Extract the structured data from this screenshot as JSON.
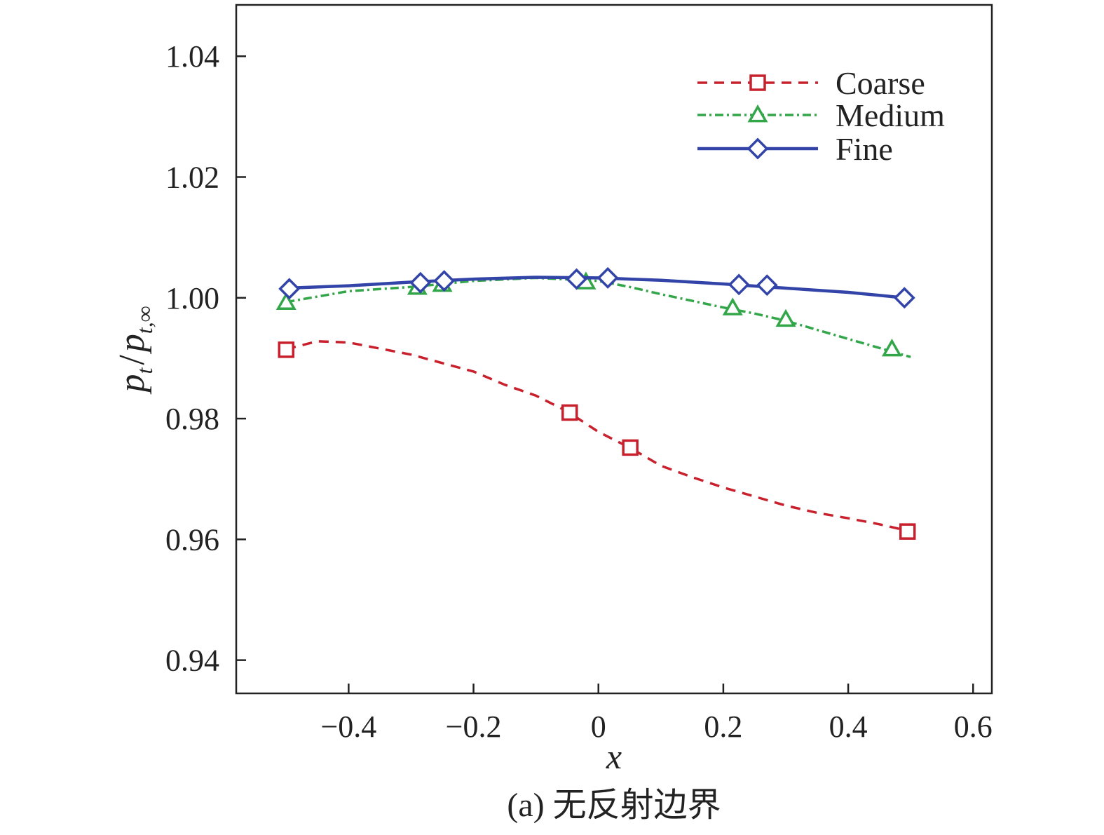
{
  "chart_data": {
    "type": "line",
    "xlabel": "x",
    "ylabel": {
      "main": "p",
      "sub1": "t",
      "slash": "/",
      "main2": "p",
      "sub2": "t,∞"
    },
    "caption": "(a) 无反射边界",
    "xlim": [
      -0.58,
      0.63
    ],
    "ylim": [
      0.9345,
      1.0485
    ],
    "xticks": [
      {
        "value": -0.4,
        "label": "−0.4"
      },
      {
        "value": -0.2,
        "label": "−0.2"
      },
      {
        "value": 0,
        "label": "0"
      },
      {
        "value": 0.2,
        "label": "0.2"
      },
      {
        "value": 0.4,
        "label": "0.4"
      },
      {
        "value": 0.6,
        "label": "0.6"
      }
    ],
    "yticks": [
      {
        "value": 0.94,
        "label": "0.94"
      },
      {
        "value": 0.96,
        "label": "0.96"
      },
      {
        "value": 0.98,
        "label": "0.98"
      },
      {
        "value": 1.0,
        "label": "1.00"
      },
      {
        "value": 1.02,
        "label": "1.02"
      },
      {
        "value": 1.04,
        "label": "1.04"
      }
    ],
    "grid": false,
    "legend_position": "top-right",
    "series": [
      {
        "name": "Coarse",
        "color": "#c8202c",
        "line_style": "dashed",
        "marker": "square",
        "x": [
          -0.5,
          -0.45,
          -0.4,
          -0.3,
          -0.2,
          -0.15,
          -0.1,
          -0.05,
          0.0,
          0.05,
          0.1,
          0.15,
          0.2,
          0.25,
          0.3,
          0.35,
          0.4,
          0.45,
          0.5
        ],
        "y": [
          0.9915,
          0.9928,
          0.9926,
          0.9906,
          0.9878,
          0.9856,
          0.9838,
          0.9812,
          0.9778,
          0.9752,
          0.9722,
          0.9703,
          0.9686,
          0.9671,
          0.9656,
          0.9644,
          0.9635,
          0.9625,
          0.9613
        ],
        "marker_x": [
          -0.5,
          -0.046,
          0.051,
          0.495
        ],
        "marker_y": [
          0.9914,
          0.981,
          0.9752,
          0.9613
        ]
      },
      {
        "name": "Medium",
        "color": "#33a64a",
        "line_style": "dash-dot",
        "marker": "triangle",
        "x": [
          -0.5,
          -0.4,
          -0.3,
          -0.2,
          -0.1,
          0.0,
          0.05,
          0.1,
          0.15,
          0.2,
          0.25,
          0.3,
          0.35,
          0.4,
          0.45,
          0.5
        ],
        "y": [
          0.9993,
          1.0011,
          1.0018,
          1.0028,
          1.0033,
          1.0028,
          1.0018,
          1.0006,
          0.9995,
          0.9984,
          0.9974,
          0.9962,
          0.9947,
          0.9932,
          0.9917,
          0.9902
        ],
        "marker_x": [
          -0.5,
          -0.29,
          -0.25,
          -0.02,
          0.215,
          0.3,
          0.47
        ],
        "marker_y": [
          0.9992,
          1.0017,
          1.0022,
          1.0026,
          0.9983,
          0.9964,
          0.9915
        ]
      },
      {
        "name": "Fine",
        "color": "#3344a8",
        "line_style": "solid",
        "marker": "diamond",
        "x": [
          -0.5,
          -0.4,
          -0.3,
          -0.2,
          -0.1,
          0.0,
          0.1,
          0.2,
          0.3,
          0.4,
          0.49
        ],
        "y": [
          1.0016,
          1.002,
          1.0026,
          1.0031,
          1.0034,
          1.0033,
          1.0029,
          1.0023,
          1.0016,
          1.0009,
          1.0
        ],
        "marker_x": [
          -0.495,
          -0.285,
          -0.247,
          -0.035,
          0.015,
          0.225,
          0.27,
          0.49
        ],
        "marker_y": [
          1.0015,
          1.0025,
          1.0028,
          1.0031,
          1.0033,
          1.0022,
          1.0021,
          1.0
        ]
      }
    ]
  }
}
